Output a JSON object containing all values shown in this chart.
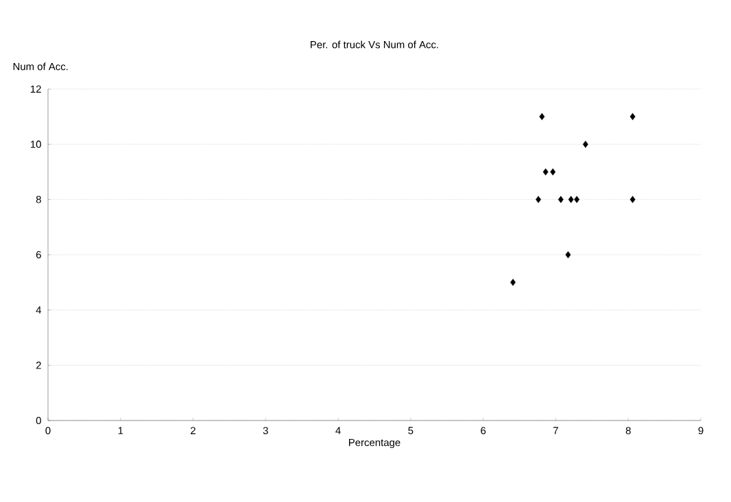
{
  "chart_data": {
    "type": "scatter",
    "title": "Per. of truck Vs Num of Acc.",
    "xlabel": "Percentage",
    "ylabel": "Num of Acc.",
    "series": [
      {
        "color": "#000000",
        "x": [
          6.41,
          6.81,
          8.06,
          7.41,
          6.86,
          6.96,
          6.76,
          7.07,
          7.21,
          7.29,
          8.06,
          7.17
        ],
        "values": [
          5,
          11,
          11,
          10,
          9,
          9,
          8,
          8,
          8,
          8,
          8,
          6
        ]
      }
    ],
    "xlim": [
      0,
      9
    ],
    "ylim": [
      0,
      12
    ],
    "xticks": [
      0,
      1,
      2,
      3,
      4,
      5,
      6,
      7,
      8,
      9
    ],
    "yticks": [
      0,
      2,
      4,
      6,
      8,
      10,
      12
    ],
    "grid": "y",
    "marker": "diamond"
  }
}
